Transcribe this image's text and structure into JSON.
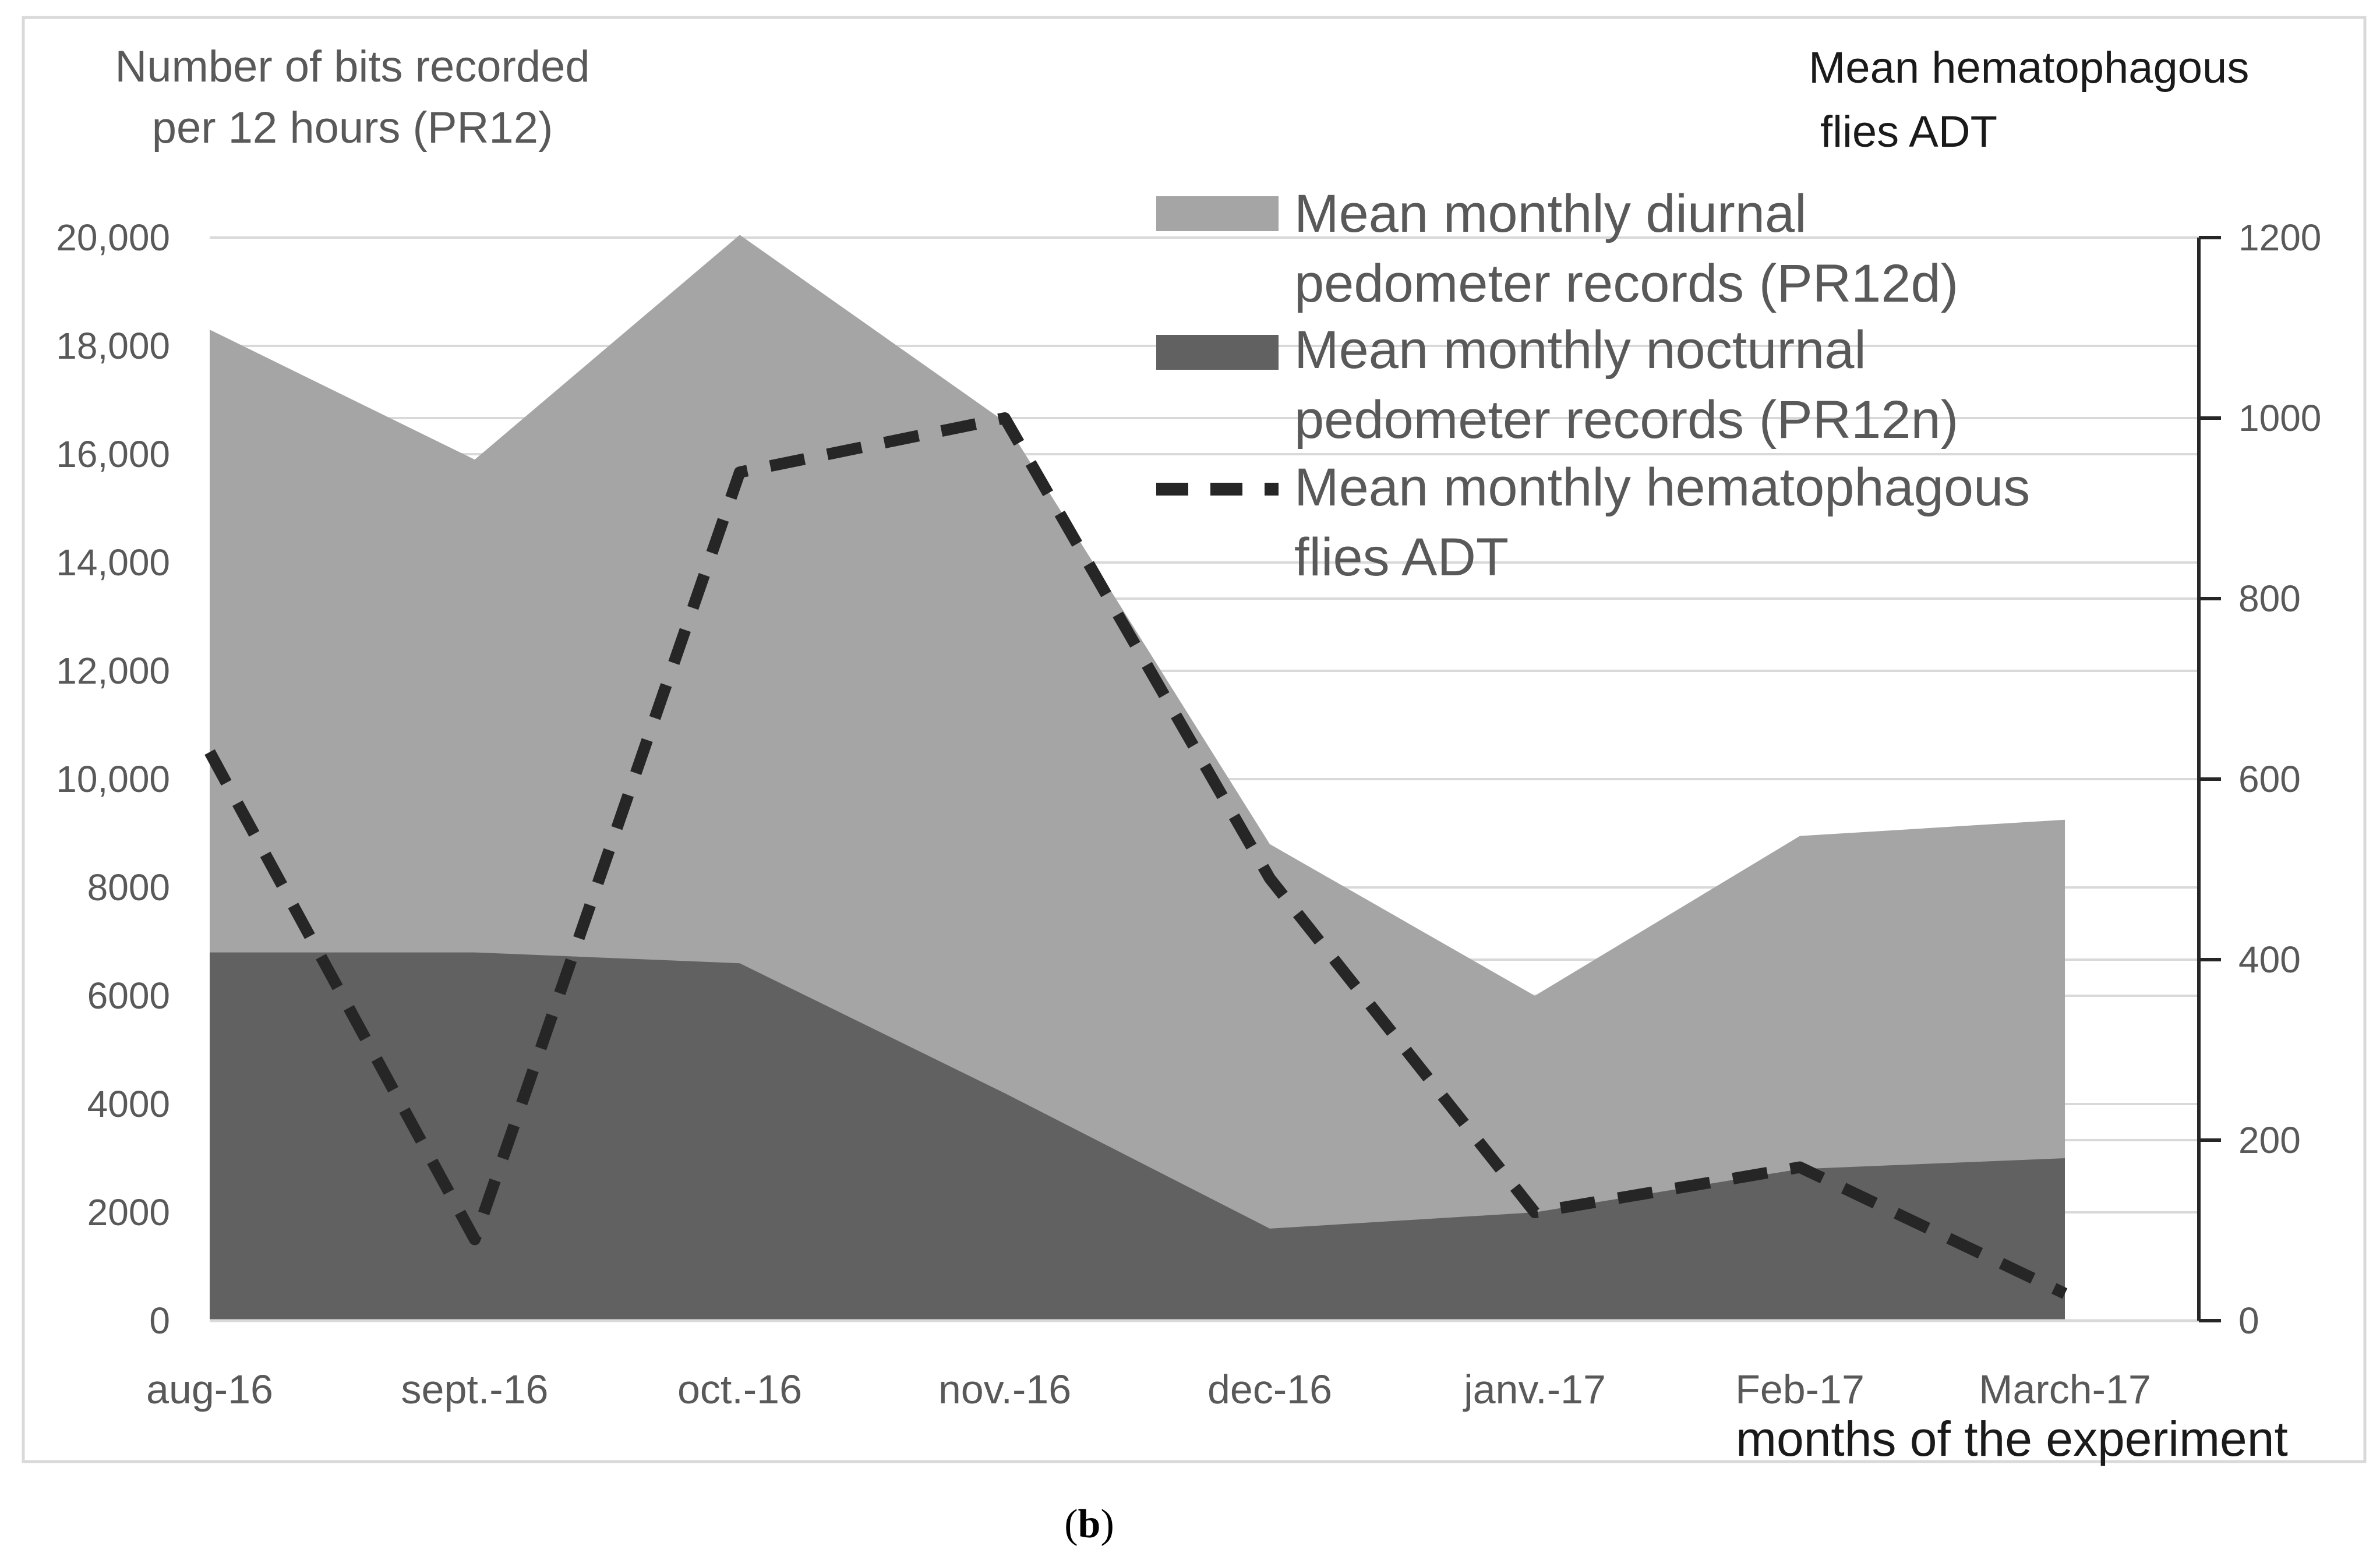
{
  "chart_data": {
    "type": "area",
    "categories": [
      "aug-16",
      "sept.-16",
      "oct.-16",
      "nov.-16",
      "dec-16",
      "janv.-17",
      "Feb-17",
      "March-17"
    ],
    "series": [
      {
        "name": "Mean monthly diurnal pedometer records (PR12d)",
        "kind": "area",
        "axis": "left",
        "color": "#a5a5a5",
        "values": [
          18300,
          15900,
          20050,
          16600,
          8800,
          6000,
          8950,
          9250
        ]
      },
      {
        "name": "Mean monthly nocturnal pedometer records (PR12n)",
        "kind": "area",
        "axis": "left",
        "color": "#616161",
        "values": [
          6800,
          6800,
          6600,
          4200,
          1700,
          2000,
          2800,
          3000
        ]
      },
      {
        "name": "Mean monthly hematophagous flies ADT",
        "kind": "line",
        "style": "dashed",
        "axis": "right",
        "color": "#262626",
        "values": [
          630,
          90,
          940,
          1000,
          490,
          120,
          170,
          30
        ]
      }
    ],
    "y_left": {
      "label_lines": [
        "Number of bits recorded",
        "per 12 hours (PR12)"
      ],
      "ylim": [
        0,
        20000
      ],
      "ticks": [
        0,
        2000,
        4000,
        6000,
        8000,
        10000,
        12000,
        14000,
        16000,
        18000,
        20000
      ],
      "tick_labels": [
        "0",
        "2000",
        "4000",
        "6000",
        "8000",
        "10,000",
        "12,000",
        "14,000",
        "16,000",
        "18,000",
        "20,000"
      ]
    },
    "y_right": {
      "label_lines": [
        "Mean hematophagous",
        "flies ADT"
      ],
      "ylim": [
        0,
        1200
      ],
      "ticks": [
        0,
        200,
        400,
        600,
        800,
        1000,
        1200
      ],
      "tick_labels": [
        "0",
        "200",
        "400",
        "600",
        "800",
        "1000",
        "1200"
      ]
    },
    "xlabel": "months of the experiment",
    "grid": true,
    "legend": {
      "position": "top-right",
      "entries": [
        {
          "lines": [
            "Mean monthly diurnal",
            "pedometer records (PR12d)"
          ]
        },
        {
          "lines": [
            "Mean monthly nocturnal",
            "pedometer records (PR12n)"
          ]
        },
        {
          "lines": [
            "Mean monthly hematophagous",
            "flies ADT"
          ]
        }
      ]
    }
  },
  "caption": {
    "text": "b",
    "open": "(",
    "close": ")"
  }
}
